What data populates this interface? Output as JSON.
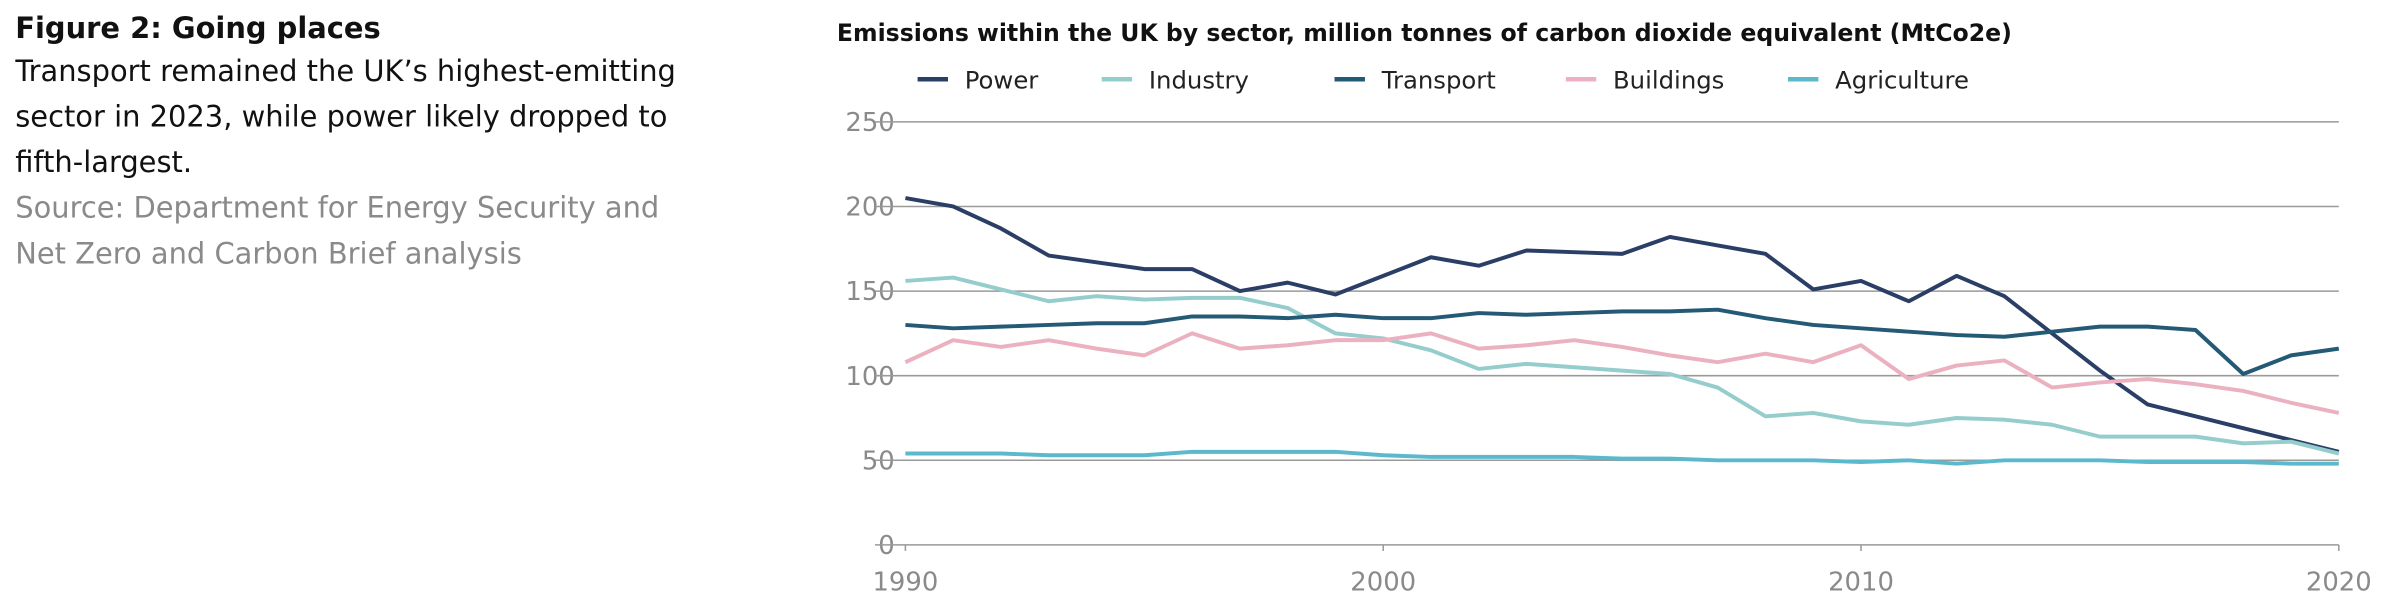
{
  "heading": "Figure 2: Going places",
  "description": "Transport remained the UK’s highest-emitting sector in 2023, while power likely dropped to fifth-largest.",
  "source": "Source: Department for Energy Security and Net Zero and Carbon Brief analysis",
  "chart_data": {
    "type": "line",
    "title": "Emissions within the UK by sector, million tonnes of carbon dioxide equivalent (MtCo2e)",
    "x": [
      1990,
      1991,
      1992,
      1993,
      1994,
      1995,
      1996,
      1997,
      1998,
      1999,
      2000,
      2001,
      2002,
      2003,
      2004,
      2005,
      2006,
      2007,
      2008,
      2009,
      2010,
      2011,
      2012,
      2013,
      2014,
      2015,
      2016,
      2017,
      2018,
      2019,
      2020
    ],
    "xlim": [
      1990,
      2020
    ],
    "xticks": [
      1990,
      2000,
      2010,
      2020
    ],
    "ylim": [
      0,
      250
    ],
    "yticks": [
      0,
      50,
      100,
      150,
      200,
      250
    ],
    "grid": true,
    "series": [
      {
        "name": "Power",
        "color": "#2b3e66",
        "values": [
          205,
          200,
          187,
          171,
          167,
          163,
          163,
          150,
          155,
          148,
          159,
          170,
          165,
          174,
          173,
          172,
          182,
          177,
          172,
          151,
          156,
          144,
          159,
          147,
          125,
          103,
          83,
          76,
          69,
          62,
          55
        ]
      },
      {
        "name": "Industry",
        "color": "#95cdcd",
        "values": [
          156,
          158,
          151,
          144,
          147,
          145,
          146,
          146,
          140,
          125,
          122,
          115,
          104,
          107,
          105,
          103,
          101,
          93,
          76,
          78,
          73,
          71,
          75,
          74,
          71,
          64,
          64,
          64,
          60,
          61,
          54
        ]
      },
      {
        "name": "Transport",
        "color": "#245a75",
        "values": [
          130,
          128,
          129,
          130,
          131,
          131,
          135,
          135,
          134,
          136,
          134,
          134,
          137,
          136,
          137,
          138,
          138,
          139,
          134,
          130,
          128,
          126,
          124,
          123,
          126,
          129,
          129,
          127,
          101,
          112,
          116
        ]
      },
      {
        "name": "Buildings",
        "color": "#ebb1c0",
        "values": [
          108,
          121,
          117,
          121,
          116,
          112,
          125,
          116,
          118,
          121,
          121,
          125,
          116,
          118,
          121,
          117,
          112,
          108,
          113,
          108,
          118,
          98,
          106,
          109,
          93,
          96,
          98,
          95,
          91,
          84,
          78
        ]
      },
      {
        "name": "Agriculture",
        "color": "#5cb9cd",
        "values": [
          54,
          54,
          54,
          53,
          53,
          53,
          55,
          55,
          55,
          55,
          53,
          52,
          52,
          52,
          52,
          51,
          51,
          50,
          50,
          50,
          49,
          50,
          48,
          50,
          50,
          50,
          49,
          49,
          49,
          48,
          48
        ]
      }
    ]
  }
}
